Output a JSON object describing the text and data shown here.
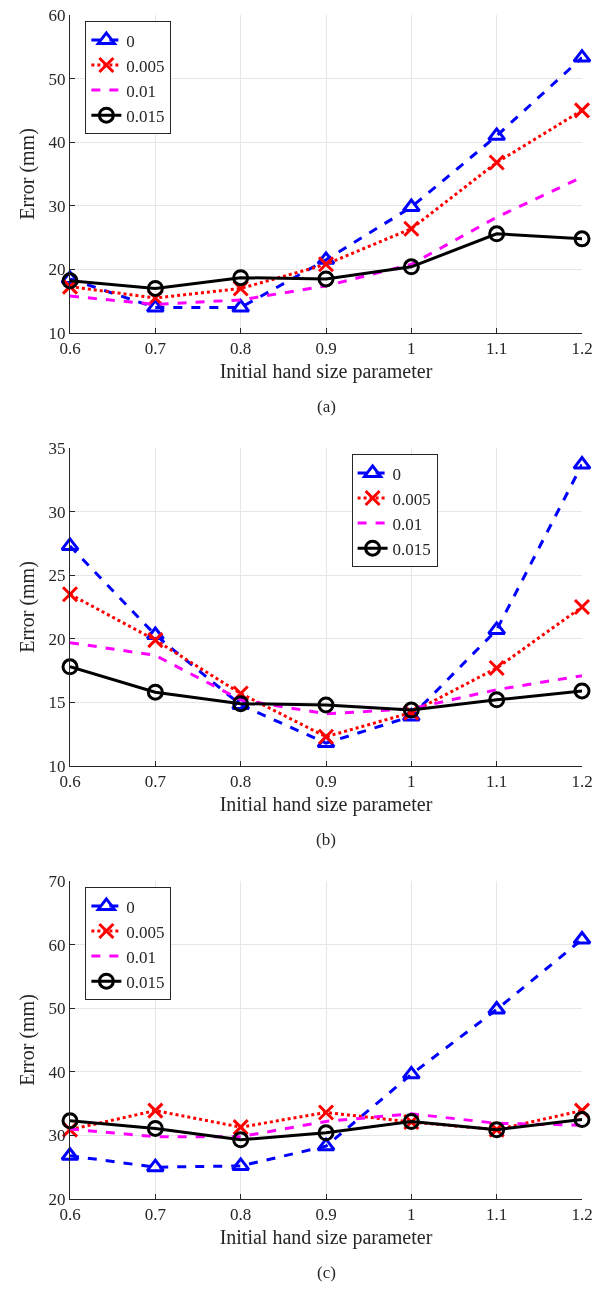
{
  "chart_data": [
    {
      "type": "line",
      "xlabel": "Initial hand size parameter",
      "ylabel": "Error (mm)",
      "annotations": [
        "(a)"
      ],
      "x": [
        0.6,
        0.7,
        0.8,
        0.9,
        1,
        1.1,
        1.2
      ],
      "xlim": [
        0.6,
        1.2
      ],
      "xticks": [
        0.6,
        0.7,
        0.8,
        0.9,
        1,
        1.1,
        1.2
      ],
      "ylim": [
        10,
        60
      ],
      "yticks": [
        10,
        20,
        30,
        40,
        50,
        60
      ],
      "grid": true,
      "legend": "top left",
      "series": [
        {
          "name": "0",
          "color": "#0000ff",
          "marker": "triangle",
          "line_style": "dashed",
          "values": [
            18.5,
            14,
            14,
            21.5,
            29.8,
            41,
            53.3
          ]
        },
        {
          "name": "0.005",
          "color": "#ff0000",
          "marker": "cross",
          "line_style": "dotted",
          "values": [
            17.3,
            15.5,
            17,
            20.8,
            26.4,
            36.8,
            45
          ]
        },
        {
          "name": "0.01",
          "color": "#ff00ff",
          "marker": "none",
          "line_style": "dashed",
          "values": [
            15.8,
            14.5,
            15.2,
            17.4,
            20.8,
            28.2,
            34.5
          ]
        },
        {
          "name": "0.015",
          "color": "#000000",
          "marker": "circle",
          "line_style": "solid",
          "values": [
            18.2,
            17,
            18.7,
            18.5,
            20.4,
            25.6,
            24.8
          ]
        }
      ]
    },
    {
      "type": "line",
      "xlabel": "Initial hand size parameter",
      "ylabel": "Error (mm)",
      "annotations": [
        "(b)"
      ],
      "x": [
        0.6,
        0.7,
        0.8,
        0.9,
        1,
        1.1,
        1.2
      ],
      "xlim": [
        0.6,
        1.2
      ],
      "xticks": [
        0.6,
        0.7,
        0.8,
        0.9,
        1,
        1.1,
        1.2
      ],
      "ylim": [
        10,
        35
      ],
      "yticks": [
        10,
        15,
        20,
        25,
        30,
        35
      ],
      "grid": true,
      "legend": "top",
      "series": [
        {
          "name": "0",
          "color": "#0000ff",
          "marker": "triangle",
          "line_style": "dashed",
          "values": [
            27.3,
            20.3,
            14.8,
            11.8,
            13.9,
            20.7,
            33.7
          ]
        },
        {
          "name": "0.005",
          "color": "#ff0000",
          "marker": "cross",
          "line_style": "dotted",
          "values": [
            23.5,
            19.9,
            15.7,
            12.3,
            14.2,
            17.7,
            22.5
          ]
        },
        {
          "name": "0.01",
          "color": "#ff00ff",
          "marker": "none",
          "line_style": "dashed",
          "values": [
            19.7,
            18.7,
            15.2,
            14.1,
            14.5,
            16,
            17.1
          ]
        },
        {
          "name": "0.015",
          "color": "#000000",
          "marker": "circle",
          "line_style": "solid",
          "values": [
            17.8,
            15.8,
            14.9,
            14.8,
            14.4,
            15.2,
            15.9
          ]
        }
      ]
    },
    {
      "type": "line",
      "xlabel": "Initial hand size parameter",
      "ylabel": "Error (mm)",
      "annotations": [
        "(c)"
      ],
      "x": [
        0.6,
        0.7,
        0.8,
        0.9,
        1,
        1.1,
        1.2
      ],
      "xlim": [
        0.6,
        1.2
      ],
      "xticks": [
        0.6,
        0.7,
        0.8,
        0.9,
        1,
        1.1,
        1.2
      ],
      "ylim": [
        20,
        70
      ],
      "yticks": [
        20,
        30,
        40,
        50,
        60,
        70
      ],
      "grid": true,
      "legend": "top left",
      "series": [
        {
          "name": "0",
          "color": "#0000ff",
          "marker": "triangle",
          "line_style": "dashed",
          "values": [
            26.8,
            25,
            25.2,
            28.3,
            39.6,
            49.8,
            60.8
          ]
        },
        {
          "name": "0.005",
          "color": "#ff0000",
          "marker": "cross",
          "line_style": "dotted",
          "values": [
            30.9,
            33.9,
            31.3,
            33.6,
            32.1,
            30.9,
            33.9
          ]
        },
        {
          "name": "0.01",
          "color": "#ff00ff",
          "marker": "none",
          "line_style": "dashed",
          "values": [
            31,
            29.8,
            29.8,
            32.2,
            33.4,
            31.9,
            31.6
          ]
        },
        {
          "name": "0.015",
          "color": "#000000",
          "marker": "circle",
          "line_style": "solid",
          "values": [
            32.3,
            31.1,
            29.3,
            30.4,
            32.2,
            30.9,
            32.5
          ]
        }
      ]
    }
  ]
}
